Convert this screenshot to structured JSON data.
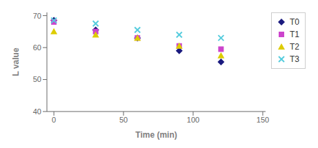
{
  "chart_data": {
    "type": "scatter",
    "xlabel": "Time (min)",
    "ylabel": "L value",
    "x": [
      0,
      30,
      60,
      90,
      120
    ],
    "series": [
      {
        "name": "T0",
        "color": "#1a1a7e",
        "marker": "diamond",
        "values": [
          68.5,
          65.5,
          63.0,
          59.0,
          55.5
        ]
      },
      {
        "name": "T1",
        "color": "#cc44cc",
        "marker": "square",
        "values": [
          68.0,
          65.0,
          63.0,
          60.5,
          59.5
        ]
      },
      {
        "name": "T2",
        "color": "#ddcc00",
        "marker": "triangle-up",
        "values": [
          65.0,
          64.0,
          63.0,
          60.5,
          57.5
        ]
      },
      {
        "name": "T3",
        "color": "#55ccdd",
        "marker": "x",
        "values": [
          68.5,
          67.5,
          65.5,
          64.0,
          63.0
        ]
      }
    ],
    "xlim": [
      -5,
      152
    ],
    "ylim": [
      40,
      71
    ],
    "xticks": [
      0,
      50,
      100,
      150
    ],
    "yticks": [
      40,
      50,
      60,
      70
    ],
    "grid": false,
    "legend": "upper right"
  }
}
